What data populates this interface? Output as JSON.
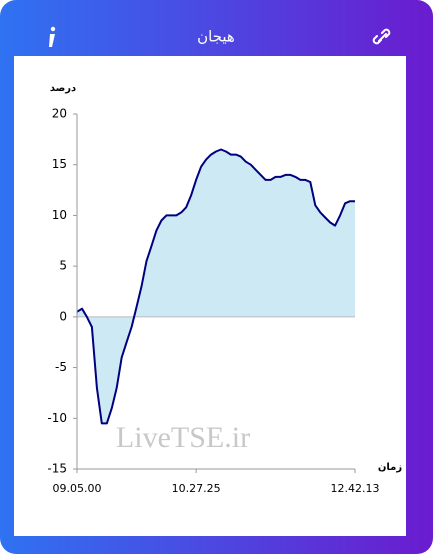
{
  "header": {
    "title": "هیجان"
  },
  "chart_data": {
    "type": "area",
    "ylabel": "درصد",
    "xlabel": "زمان",
    "watermark": "LiveTSE.ir",
    "categories": [
      "09.05.00",
      null,
      null,
      null,
      null,
      null,
      null,
      null,
      null,
      null,
      null,
      null,
      null,
      null,
      null,
      null,
      null,
      null,
      null,
      null,
      null,
      null,
      null,
      null,
      "10.27.25",
      null,
      null,
      null,
      null,
      null,
      null,
      null,
      null,
      null,
      null,
      null,
      null,
      null,
      null,
      null,
      null,
      null,
      null,
      null,
      null,
      null,
      null,
      null,
      null,
      null,
      null,
      null,
      null,
      null,
      null,
      null,
      "12.42.13"
    ],
    "values": [
      0.5,
      0.8,
      0,
      -1,
      -7,
      -10.5,
      -10.5,
      -9,
      -7,
      -4,
      -2.5,
      -1,
      1,
      3,
      5.5,
      7,
      8.5,
      9.5,
      10,
      10,
      10,
      10.3,
      10.8,
      12,
      13.5,
      14.8,
      15.5,
      16,
      16.3,
      16.5,
      16.3,
      16,
      16,
      15.8,
      15.3,
      15,
      14.5,
      14,
      13.5,
      13.5,
      13.8,
      13.8,
      14,
      14,
      13.8,
      13.5,
      13.5,
      13.3,
      11,
      10.3,
      9.8,
      9.3,
      9,
      10,
      11.2,
      11.4,
      11.4
    ],
    "color": "#000080",
    "fill": "#cde9f3",
    "ylim": [
      -15,
      20
    ],
    "yticks": [
      -15,
      -10,
      -5,
      0,
      5,
      10,
      15,
      20
    ]
  }
}
